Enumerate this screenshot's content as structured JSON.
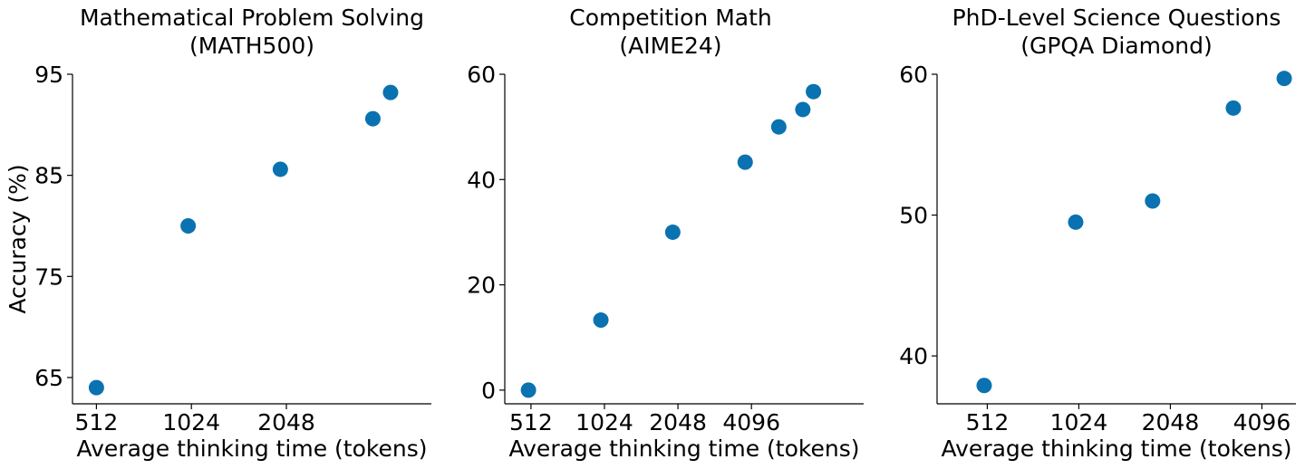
{
  "chart_data": [
    {
      "type": "scatter",
      "title": [
        "Mathematical Problem Solving",
        "(MATH500)"
      ],
      "xlabel": "Average thinking time (tokens)",
      "ylabel": "Accuracy (%)",
      "x_scale": "log2",
      "xlim": [
        430,
        5900
      ],
      "ylim": [
        62.4,
        95
      ],
      "xticks": [
        512,
        1024,
        2048
      ],
      "xtick_labels": [
        "512",
        "1024",
        "2048"
      ],
      "yticks": [
        65,
        75,
        85,
        95
      ],
      "ytick_labels": [
        "65",
        "75",
        "85",
        "95"
      ],
      "grid": false,
      "color": "#0a72b0",
      "points": [
        {
          "x": 512,
          "y": 64.0
        },
        {
          "x": 1000,
          "y": 80.0
        },
        {
          "x": 1960,
          "y": 85.6
        },
        {
          "x": 3850,
          "y": 90.6
        },
        {
          "x": 4380,
          "y": 93.2
        }
      ]
    },
    {
      "type": "scatter",
      "title": [
        "Competition Math",
        "(AIME24)"
      ],
      "xlabel": "Average thinking time (tokens)",
      "ylabel": "",
      "x_scale": "log2",
      "xlim": [
        400,
        11800
      ],
      "ylim": [
        -2.6,
        60
      ],
      "xticks": [
        512,
        1024,
        2048,
        4096
      ],
      "xtick_labels": [
        "512",
        "1024",
        "2048",
        "4096"
      ],
      "yticks": [
        0,
        20,
        40,
        60
      ],
      "ytick_labels": [
        "0",
        "20",
        "40",
        "60"
      ],
      "grid": false,
      "color": "#0a72b0",
      "points": [
        {
          "x": 500,
          "y": 0.0
        },
        {
          "x": 990,
          "y": 13.3
        },
        {
          "x": 1950,
          "y": 30.0
        },
        {
          "x": 3860,
          "y": 43.3
        },
        {
          "x": 5300,
          "y": 50.0
        },
        {
          "x": 6650,
          "y": 53.3
        },
        {
          "x": 7350,
          "y": 56.7
        }
      ]
    },
    {
      "type": "scatter",
      "title": [
        "PhD-Level Science Questions",
        "(GPQA Diamond)"
      ],
      "xlabel": "Average thinking time (tokens)",
      "ylabel": "",
      "x_scale": "log2",
      "xlim": [
        350,
        5300
      ],
      "ylim": [
        36.6,
        60
      ],
      "xticks": [
        512,
        1024,
        2048,
        4096
      ],
      "xtick_labels": [
        "512",
        "1024",
        "2048",
        "4096"
      ],
      "yticks": [
        40,
        50,
        60
      ],
      "ytick_labels": [
        "40",
        "50",
        "60"
      ],
      "grid": false,
      "color": "#0a72b0",
      "points": [
        {
          "x": 500,
          "y": 37.9
        },
        {
          "x": 1000,
          "y": 49.5
        },
        {
          "x": 1790,
          "y": 51.0
        },
        {
          "x": 3300,
          "y": 57.6
        },
        {
          "x": 4850,
          "y": 59.7
        }
      ]
    }
  ]
}
